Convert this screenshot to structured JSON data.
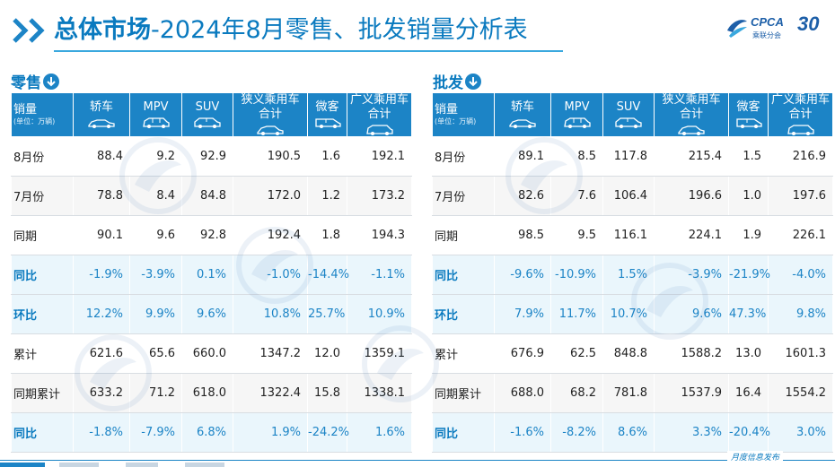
{
  "header": {
    "title_prefix": "总体市场",
    "title_suffix": "-2024年8月零售、批发销量分析表",
    "logo_text": "CPCA",
    "logo_sub": "乘联分会",
    "logo_anniversary": "30"
  },
  "columns": [
    "轿车",
    "MPV",
    "SUV",
    "狭义乘用车\n合计",
    "微客",
    "广义乘用车\n合计"
  ],
  "column_icons": [
    "sedan-icon",
    "mpv-icon",
    "suv-icon",
    "passenger-car-icon",
    "microvan-icon",
    "broad-passenger-car-icon"
  ],
  "row_header": {
    "main": "销量",
    "unit": "(单位：万辆)"
  },
  "retail": {
    "label": "零售",
    "rows": [
      {
        "label": "8月份",
        "kind": "plain",
        "values": [
          "88.4",
          "9.2",
          "92.9",
          "190.5",
          "1.6",
          "192.1"
        ]
      },
      {
        "label": "7月份",
        "kind": "alt",
        "values": [
          "78.8",
          "8.4",
          "84.8",
          "172.0",
          "1.2",
          "173.2"
        ]
      },
      {
        "label": "同期",
        "kind": "plain",
        "values": [
          "90.1",
          "9.6",
          "92.8",
          "192.4",
          "1.8",
          "194.3"
        ]
      },
      {
        "label": "同比",
        "kind": "pct",
        "values": [
          "-1.9%",
          "-3.9%",
          "0.1%",
          "-1.0%",
          "-14.4%",
          "-1.1%"
        ]
      },
      {
        "label": "环比",
        "kind": "pct",
        "values": [
          "12.2%",
          "9.9%",
          "9.6%",
          "10.8%",
          "25.7%",
          "10.9%"
        ]
      },
      {
        "label": "累计",
        "kind": "plain",
        "values": [
          "621.6",
          "65.6",
          "660.0",
          "1347.2",
          "12.0",
          "1359.1"
        ]
      },
      {
        "label": "同期累计",
        "kind": "alt",
        "values": [
          "633.2",
          "71.2",
          "618.0",
          "1322.4",
          "15.8",
          "1338.1"
        ]
      },
      {
        "label": "同比",
        "kind": "pct",
        "values": [
          "-1.8%",
          "-7.9%",
          "6.8%",
          "1.9%",
          "-24.2%",
          "1.6%"
        ]
      }
    ]
  },
  "wholesale": {
    "label": "批发",
    "rows": [
      {
        "label": "8月份",
        "kind": "plain",
        "values": [
          "89.1",
          "8.5",
          "117.8",
          "215.4",
          "1.5",
          "216.9"
        ]
      },
      {
        "label": "7月份",
        "kind": "alt",
        "values": [
          "82.6",
          "7.6",
          "106.4",
          "196.6",
          "1.0",
          "197.6"
        ]
      },
      {
        "label": "同期",
        "kind": "plain",
        "values": [
          "98.5",
          "9.5",
          "116.1",
          "224.1",
          "1.9",
          "226.1"
        ]
      },
      {
        "label": "同比",
        "kind": "pct",
        "values": [
          "-9.6%",
          "-10.9%",
          "1.5%",
          "-3.9%",
          "-21.9%",
          "-4.0%"
        ]
      },
      {
        "label": "环比",
        "kind": "pct",
        "values": [
          "7.9%",
          "11.7%",
          "10.7%",
          "9.6%",
          "47.3%",
          "9.8%"
        ]
      },
      {
        "label": "累计",
        "kind": "plain",
        "values": [
          "676.9",
          "62.5",
          "848.8",
          "1588.2",
          "13.0",
          "1601.3"
        ]
      },
      {
        "label": "同期累计",
        "kind": "alt",
        "values": [
          "688.0",
          "68.2",
          "781.8",
          "1537.9",
          "16.4",
          "1554.2"
        ]
      },
      {
        "label": "同比",
        "kind": "pct",
        "values": [
          "-1.6%",
          "-8.2%",
          "8.6%",
          "3.3%",
          "-20.4%",
          "3.0%"
        ]
      }
    ]
  },
  "footer": {
    "text": "月度信息发布"
  },
  "colors": {
    "accent": "#1c84c6",
    "title": "#0a7abf",
    "pct_row_bg": "#eaf6fc"
  }
}
